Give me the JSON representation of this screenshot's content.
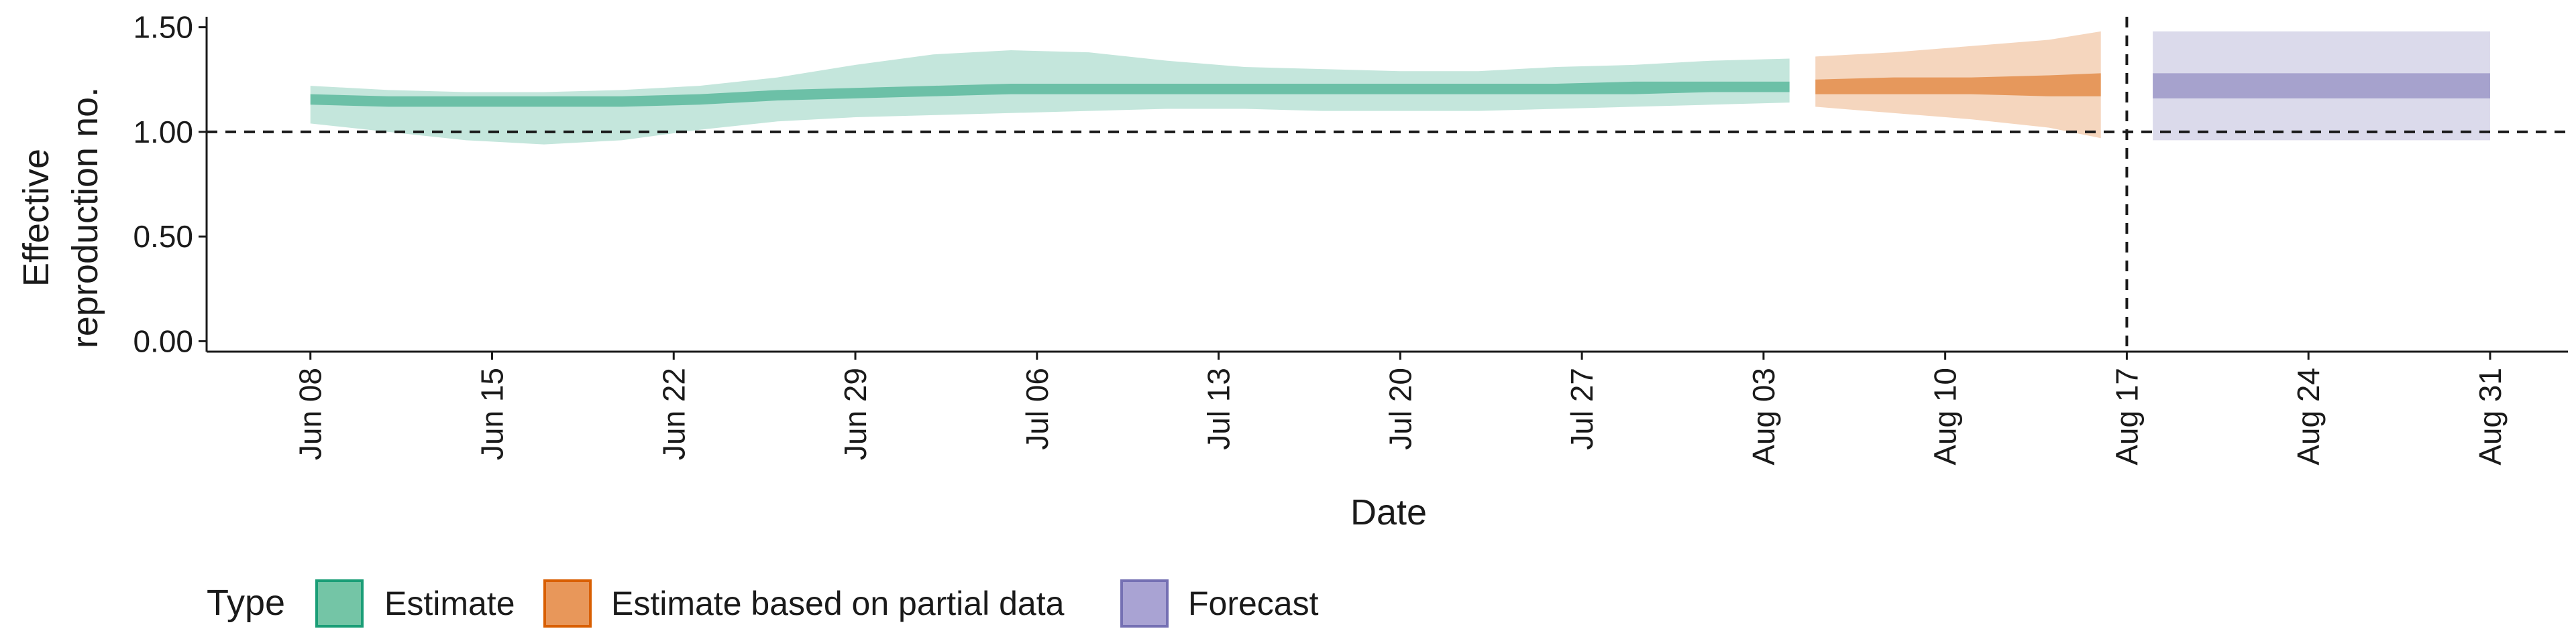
{
  "chart_data": {
    "type": "area",
    "xlabel": "Date",
    "ylabel": [
      "Effective",
      "reproduction no."
    ],
    "yticks": [
      {
        "value": 0.0,
        "label": "0.00"
      },
      {
        "value": 0.5,
        "label": "0.50"
      },
      {
        "value": 1.0,
        "label": "1.00"
      },
      {
        "value": 1.5,
        "label": "1.50"
      }
    ],
    "xticks": [
      {
        "date": "2020-06-08",
        "label": "Jun 08"
      },
      {
        "date": "2020-06-15",
        "label": "Jun 15"
      },
      {
        "date": "2020-06-22",
        "label": "Jun 22"
      },
      {
        "date": "2020-06-29",
        "label": "Jun 29"
      },
      {
        "date": "2020-07-06",
        "label": "Jul 06"
      },
      {
        "date": "2020-07-13",
        "label": "Jul 13"
      },
      {
        "date": "2020-07-20",
        "label": "Jul 20"
      },
      {
        "date": "2020-07-27",
        "label": "Jul 27"
      },
      {
        "date": "2020-08-03",
        "label": "Aug 03"
      },
      {
        "date": "2020-08-10",
        "label": "Aug 10"
      },
      {
        "date": "2020-08-17",
        "label": "Aug 17"
      },
      {
        "date": "2020-08-24",
        "label": "Aug 24"
      },
      {
        "date": "2020-08-31",
        "label": "Aug 31"
      }
    ],
    "xlim": [
      "2020-06-04",
      "2020-09-03"
    ],
    "ylim": [
      -0.05,
      1.55
    ],
    "reference_line_y": 1.0,
    "vertical_line_date": "2020-08-17",
    "legend": {
      "title": "Type",
      "position": "bottom",
      "entries": [
        {
          "label": "Estimate",
          "fill": "#74c5a6",
          "border": "#1b9e77"
        },
        {
          "label": "Estimate based on partial data",
          "fill": "#e8975a",
          "border": "#d95f02"
        },
        {
          "label": "Forecast",
          "fill": "#a9a3d3",
          "border": "#7570b3"
        }
      ]
    },
    "series": [
      {
        "name": "Estimate",
        "color": "#1b9e77",
        "points": [
          {
            "date": "2020-06-08",
            "lo90": 1.04,
            "hi90": 1.22,
            "lo50": 1.13,
            "hi50": 1.18
          },
          {
            "date": "2020-06-11",
            "lo90": 1.0,
            "hi90": 1.2,
            "lo50": 1.12,
            "hi50": 1.17
          },
          {
            "date": "2020-06-14",
            "lo90": 0.96,
            "hi90": 1.19,
            "lo50": 1.12,
            "hi50": 1.17
          },
          {
            "date": "2020-06-17",
            "lo90": 0.94,
            "hi90": 1.19,
            "lo50": 1.12,
            "hi50": 1.17
          },
          {
            "date": "2020-06-20",
            "lo90": 0.96,
            "hi90": 1.2,
            "lo50": 1.12,
            "hi50": 1.17
          },
          {
            "date": "2020-06-23",
            "lo90": 1.01,
            "hi90": 1.22,
            "lo50": 1.13,
            "hi50": 1.18
          },
          {
            "date": "2020-06-26",
            "lo90": 1.05,
            "hi90": 1.26,
            "lo50": 1.15,
            "hi50": 1.2
          },
          {
            "date": "2020-06-29",
            "lo90": 1.07,
            "hi90": 1.32,
            "lo50": 1.16,
            "hi50": 1.21
          },
          {
            "date": "2020-07-02",
            "lo90": 1.08,
            "hi90": 1.37,
            "lo50": 1.17,
            "hi50": 1.22
          },
          {
            "date": "2020-07-05",
            "lo90": 1.09,
            "hi90": 1.39,
            "lo50": 1.18,
            "hi50": 1.23
          },
          {
            "date": "2020-07-08",
            "lo90": 1.1,
            "hi90": 1.38,
            "lo50": 1.18,
            "hi50": 1.23
          },
          {
            "date": "2020-07-11",
            "lo90": 1.11,
            "hi90": 1.34,
            "lo50": 1.18,
            "hi50": 1.23
          },
          {
            "date": "2020-07-14",
            "lo90": 1.11,
            "hi90": 1.31,
            "lo50": 1.18,
            "hi50": 1.23
          },
          {
            "date": "2020-07-17",
            "lo90": 1.1,
            "hi90": 1.3,
            "lo50": 1.18,
            "hi50": 1.23
          },
          {
            "date": "2020-07-20",
            "lo90": 1.1,
            "hi90": 1.29,
            "lo50": 1.18,
            "hi50": 1.23
          },
          {
            "date": "2020-07-23",
            "lo90": 1.1,
            "hi90": 1.29,
            "lo50": 1.18,
            "hi50": 1.23
          },
          {
            "date": "2020-07-26",
            "lo90": 1.11,
            "hi90": 1.31,
            "lo50": 1.18,
            "hi50": 1.23
          },
          {
            "date": "2020-07-29",
            "lo90": 1.12,
            "hi90": 1.32,
            "lo50": 1.18,
            "hi50": 1.24
          },
          {
            "date": "2020-08-01",
            "lo90": 1.13,
            "hi90": 1.34,
            "lo50": 1.19,
            "hi50": 1.24
          },
          {
            "date": "2020-08-04",
            "lo90": 1.14,
            "hi90": 1.35,
            "lo50": 1.19,
            "hi50": 1.24
          }
        ]
      },
      {
        "name": "Estimate based on partial data",
        "color": "#d95f02",
        "points": [
          {
            "date": "2020-08-05",
            "lo90": 1.12,
            "hi90": 1.36,
            "lo50": 1.18,
            "hi50": 1.25
          },
          {
            "date": "2020-08-08",
            "lo90": 1.09,
            "hi90": 1.38,
            "lo50": 1.18,
            "hi50": 1.26
          },
          {
            "date": "2020-08-11",
            "lo90": 1.06,
            "hi90": 1.41,
            "lo50": 1.18,
            "hi50": 1.26
          },
          {
            "date": "2020-08-14",
            "lo90": 1.02,
            "hi90": 1.44,
            "lo50": 1.17,
            "hi50": 1.27
          },
          {
            "date": "2020-08-16",
            "lo90": 0.97,
            "hi90": 1.48,
            "lo50": 1.17,
            "hi50": 1.28
          }
        ]
      },
      {
        "name": "Forecast",
        "color": "#7570b3",
        "points": [
          {
            "date": "2020-08-18",
            "lo90": 0.96,
            "hi90": 1.48,
            "lo50": 1.16,
            "hi50": 1.28
          },
          {
            "date": "2020-08-31",
            "lo90": 0.96,
            "hi90": 1.48,
            "lo50": 1.16,
            "hi50": 1.28
          }
        ]
      }
    ]
  }
}
